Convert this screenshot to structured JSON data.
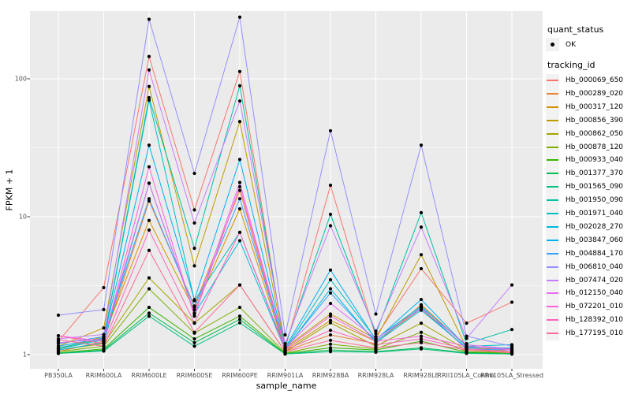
{
  "figure": {
    "background": "#ffffff",
    "panel_background": "#ebebeb",
    "grid_color": "#ffffff",
    "tick_color": "#333333",
    "axis_text_color": "#4d4d4d",
    "point_color": "#000000"
  },
  "legend": {
    "quant_status": {
      "title": "quant_status",
      "items": [
        {
          "label": "OK",
          "symbol": "point-icon",
          "color": "#000000"
        }
      ]
    },
    "tracking_id": {
      "title": "tracking_id"
    }
  },
  "chart_data": {
    "type": "line",
    "title": "",
    "xlabel": "sample_name",
    "ylabel": "FPKM + 1",
    "y_scale": "log10",
    "y_ticks": [
      1,
      10,
      100
    ],
    "y_minor_ticks": [
      3.162,
      31.62
    ],
    "ylim": [
      0.79,
      310
    ],
    "grid": true,
    "legend_position": "right",
    "x_categories": [
      "PB350LA",
      "RRIM600LA",
      "RRIM600LE",
      "RRIM600SE",
      "RRIM600PE",
      "RRIM901LA",
      "RRIM928BA",
      "RRIM928LA",
      "RRIM928LE",
      "RRII105LA_Control",
      "RRII105LA_Stressed"
    ],
    "series": [
      {
        "name": "Hb_000069_650",
        "color": "#F8766D",
        "values": [
          1.25,
          3.06,
          145,
          11.2,
          113,
          1.1,
          16.9,
          1.35,
          4.2,
          1.69,
          2.4
        ]
      },
      {
        "name": "Hb_000289_020",
        "color": "#EA8331",
        "values": [
          1.05,
          1.25,
          13.0,
          2.25,
          15.5,
          1.06,
          1.39,
          1.2,
          2.3,
          1.15,
          1.05
        ]
      },
      {
        "name": "Hb_000317_120",
        "color": "#D89000",
        "values": [
          1.1,
          1.35,
          9.4,
          2.11,
          11.4,
          1.08,
          1.77,
          1.25,
          2.15,
          1.1,
          1.08
        ]
      },
      {
        "name": "Hb_000856_390",
        "color": "#C09B00",
        "values": [
          1.15,
          1.56,
          88,
          4.4,
          49,
          1.12,
          1.97,
          1.3,
          5.3,
          1.12,
          1.1
        ]
      },
      {
        "name": "Hb_000862_050",
        "color": "#A3A500",
        "values": [
          1.08,
          1.2,
          3.6,
          1.69,
          3.2,
          1.05,
          1.7,
          1.15,
          1.69,
          1.08,
          1.05
        ]
      },
      {
        "name": "Hb_000878_120",
        "color": "#7CAE00",
        "values": [
          1.05,
          1.15,
          3.0,
          1.43,
          2.2,
          1.03,
          1.19,
          1.1,
          1.45,
          1.05,
          1.03
        ]
      },
      {
        "name": "Hb_000933_040",
        "color": "#39B600",
        "values": [
          1.03,
          1.1,
          2.2,
          1.3,
          1.9,
          1.02,
          1.12,
          1.08,
          1.25,
          1.04,
          1.02
        ]
      },
      {
        "name": "Hb_001377_370",
        "color": "#00BB4E",
        "values": [
          1.02,
          1.08,
          2.0,
          1.22,
          1.8,
          1.01,
          1.08,
          1.05,
          1.12,
          1.03,
          1.01
        ]
      },
      {
        "name": "Hb_001565_090",
        "color": "#00BF7D",
        "values": [
          1.02,
          1.06,
          1.9,
          1.15,
          1.7,
          1.01,
          1.05,
          1.04,
          1.1,
          1.02,
          1.01
        ]
      },
      {
        "name": "Hb_001950_090",
        "color": "#00C1A3",
        "values": [
          1.12,
          1.3,
          73,
          5.9,
          89,
          1.15,
          10.4,
          1.42,
          10.7,
          1.2,
          1.52
        ]
      },
      {
        "name": "Hb_001971_040",
        "color": "#00BFC4",
        "values": [
          1.1,
          1.28,
          70,
          2.46,
          7.7,
          1.1,
          3.49,
          1.3,
          2.25,
          1.15,
          1.18
        ]
      },
      {
        "name": "Hb_002028_270",
        "color": "#00BAE0",
        "values": [
          1.08,
          1.22,
          17.5,
          1.97,
          6.7,
          1.08,
          3.0,
          1.22,
          2.1,
          1.12,
          1.12
        ]
      },
      {
        "name": "Hb_003847_060",
        "color": "#00B0F6",
        "values": [
          1.15,
          1.32,
          33,
          2.5,
          26,
          1.12,
          4.1,
          1.28,
          2.51,
          1.14,
          1.1
        ]
      },
      {
        "name": "Hb_004884_170",
        "color": "#35A2FF",
        "values": [
          1.2,
          1.35,
          13.5,
          2.2,
          13.5,
          1.1,
          2.8,
          1.25,
          2.2,
          1.1,
          1.08
        ]
      },
      {
        "name": "Hb_006810_040",
        "color": "#9590FF",
        "values": [
          1.93,
          2.12,
          270,
          20.6,
          280,
          1.39,
          42,
          1.97,
          33,
          1.36,
          1.15
        ]
      },
      {
        "name": "Hb_007474_020",
        "color": "#C77CFF",
        "values": [
          1.3,
          1.4,
          116,
          9.0,
          69,
          1.2,
          8.6,
          1.48,
          8.4,
          1.31,
          3.2
        ]
      },
      {
        "name": "Hb_012150_040",
        "color": "#E76BF3",
        "values": [
          1.22,
          1.3,
          17.5,
          2.0,
          17.7,
          1.12,
          2.35,
          1.3,
          2.15,
          1.18,
          1.1
        ]
      },
      {
        "name": "Hb_072201_010",
        "color": "#FA62DB",
        "values": [
          1.37,
          1.25,
          23,
          1.9,
          16.5,
          1.1,
          1.9,
          1.25,
          1.36,
          1.15,
          1.08
        ]
      },
      {
        "name": "Hb_128392_010",
        "color": "#FF62BC",
        "values": [
          1.37,
          1.2,
          8.0,
          1.7,
          7.7,
          1.08,
          1.5,
          1.18,
          1.3,
          1.1,
          1.05
        ]
      },
      {
        "name": "Hb_177195_010",
        "color": "#FF6A98",
        "values": [
          1.28,
          1.15,
          5.7,
          1.45,
          3.2,
          1.05,
          1.27,
          1.12,
          1.22,
          1.08,
          1.03
        ]
      }
    ]
  }
}
